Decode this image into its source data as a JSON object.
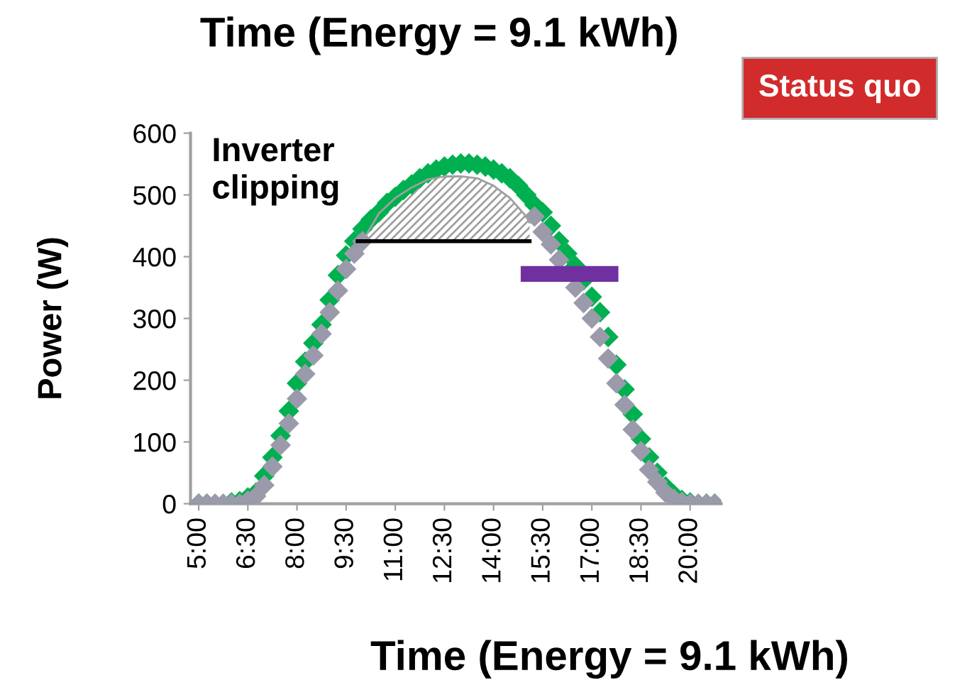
{
  "chart_data": {
    "type": "scatter",
    "title": "Time (Energy = 9.1 kWh)",
    "xlabel": "Time (Energy = 9.1 kWh)",
    "ylabel": "Power (W)",
    "annotations": [
      "Inverter\nclipping",
      "Status quo"
    ],
    "x": [
      5.0,
      5.25,
      5.5,
      5.75,
      6.0,
      6.25,
      6.5,
      6.75,
      7.0,
      7.25,
      7.5,
      7.75,
      8.0,
      8.25,
      8.5,
      8.75,
      9.0,
      9.25,
      9.5,
      9.75,
      10.0,
      10.25,
      10.5,
      10.75,
      11.0,
      11.25,
      11.5,
      11.75,
      12.0,
      12.25,
      12.5,
      12.75,
      13.0,
      13.25,
      13.5,
      13.75,
      14.0,
      14.25,
      14.5,
      14.75,
      15.0,
      15.25,
      15.5,
      15.75,
      16.0,
      16.25,
      16.5,
      16.75,
      17.0,
      17.25,
      17.5,
      17.75,
      18.0,
      18.25,
      18.5,
      18.75,
      19.0,
      19.25,
      19.5,
      19.75,
      20.0,
      20.25,
      20.5,
      20.75
    ],
    "series": [
      {
        "color": "#00b050",
        "values": [
          0,
          0,
          null,
          null,
          2,
          4,
          10,
          18,
          45,
          75,
          110,
          150,
          195,
          230,
          260,
          290,
          330,
          370,
          402,
          425,
          445,
          460,
          472,
          487,
          497,
          508,
          517,
          527,
          535,
          541,
          546,
          549,
          551,
          551,
          549,
          546,
          541,
          535,
          527,
          515,
          500,
          484,
          472,
          450,
          425,
          405,
          385,
          362,
          335,
          310,
          270,
          225,
          185,
          145,
          105,
          75,
          50,
          28,
          15,
          6,
          2,
          null,
          0,
          0
        ]
      },
      {
        "color": "#9a9aab",
        "values": [
          0,
          0,
          0,
          0,
          0,
          0,
          5,
          12,
          30,
          60,
          95,
          130,
          170,
          210,
          240,
          275,
          310,
          345,
          380,
          405,
          425,
          null,
          null,
          null,
          null,
          null,
          null,
          null,
          null,
          null,
          null,
          null,
          null,
          null,
          null,
          null,
          null,
          null,
          null,
          null,
          null,
          465,
          440,
          420,
          395,
          null,
          350,
          325,
          300,
          270,
          235,
          195,
          160,
          120,
          85,
          55,
          35,
          18,
          8,
          3,
          0,
          0,
          0,
          0
        ]
      },
      {
        "type": "line",
        "color": "#a0a0a0",
        "marker": "none",
        "x": [
          10.0,
          10.5,
          11.0,
          11.5,
          12.0,
          12.5,
          13.0,
          13.5,
          14.0,
          14.5,
          15.0,
          15.1
        ],
        "values": [
          425,
          470,
          495,
          512,
          525,
          530,
          530,
          527,
          515,
          495,
          465,
          455
        ],
        "lower": [
          425,
          425,
          425,
          425,
          425,
          425,
          425,
          425,
          425,
          425,
          425,
          425
        ],
        "upper": [
          425,
          470,
          495,
          512,
          525,
          530,
          530,
          527,
          515,
          495,
          465,
          455
        ]
      },
      {
        "type": "line",
        "color": "#000000",
        "marker": "none",
        "x": [
          9.85,
          15.1
        ],
        "values": [
          425,
          425
        ]
      },
      {
        "type": "line",
        "color": "#7030a0",
        "marker": "none",
        "x": [
          15.07,
          17.57
        ],
        "values": [
          372,
          372
        ]
      }
    ],
    "xlim": [
      4.75,
      20.95
    ],
    "ylim": [
      0,
      600
    ],
    "yticks": [
      0,
      100,
      200,
      300,
      400,
      500,
      600
    ],
    "xticks": [
      {
        "value": 5,
        "label": "5:00"
      },
      {
        "value": 6.5,
        "label": "6:30"
      },
      {
        "value": 8,
        "label": "8:00"
      },
      {
        "value": 9.5,
        "label": "9:30"
      },
      {
        "value": 11,
        "label": "11:00"
      },
      {
        "value": 12.5,
        "label": "12:30"
      },
      {
        "value": 14,
        "label": "14:00"
      },
      {
        "value": 15.5,
        "label": "15:30"
      },
      {
        "value": 17,
        "label": "17:00"
      },
      {
        "value": 18.5,
        "label": "18:30"
      },
      {
        "value": 20,
        "label": "20:00"
      }
    ],
    "marker": "diamond",
    "grid": false,
    "legend": false
  }
}
